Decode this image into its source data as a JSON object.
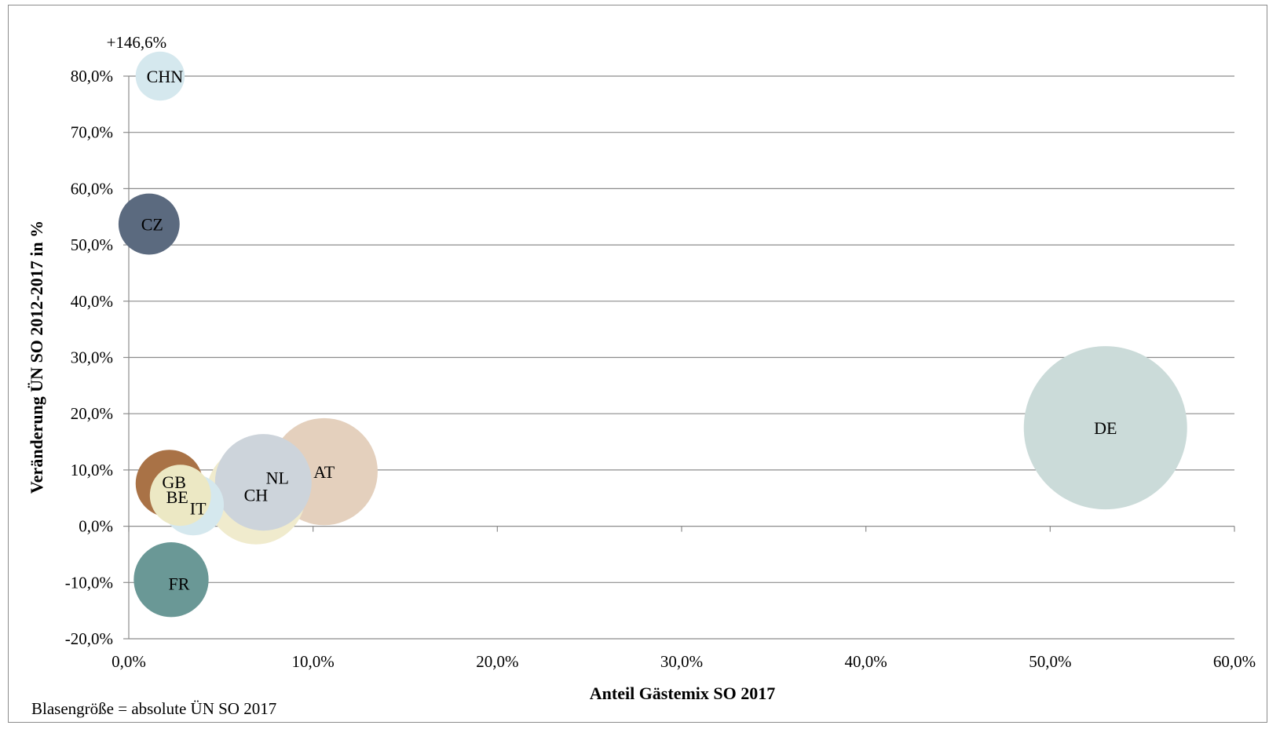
{
  "chart_data": {
    "type": "bubble",
    "xlabel": "Anteil Gästemix SO 2017",
    "ylabel": "Veränderung ÜN SO 2012-2017 in %",
    "xlim": [
      0,
      60
    ],
    "ylim": [
      -20,
      80
    ],
    "x_ticks": [
      0,
      10,
      20,
      30,
      40,
      50,
      60
    ],
    "y_ticks": [
      -20,
      -10,
      0,
      10,
      20,
      30,
      40,
      50,
      60,
      70,
      80
    ],
    "x_tick_labels": [
      "0,0%",
      "10,0%",
      "20,0%",
      "30,0%",
      "40,0%",
      "50,0%",
      "60,0%"
    ],
    "y_tick_labels": [
      "-20,0%",
      "-10,0%",
      "0,0%",
      "10,0%",
      "20,0%",
      "30,0%",
      "40,0%",
      "50,0%",
      "60,0%",
      "70,0%",
      "80,0%"
    ],
    "grid": "horizontal",
    "size_note": "Blasengröße = absolute ÜN SO 2017",
    "points": [
      {
        "label": "DE",
        "x": 53.0,
        "y": 17.5,
        "size": 100,
        "color": "#cbdbd9"
      },
      {
        "label": "AT",
        "x": 10.6,
        "y": 9.7,
        "size": 43,
        "color": "#e4d0bd"
      },
      {
        "label": "NL",
        "x": 7.3,
        "y": 7.8,
        "size": 35,
        "color": "#cdd4db"
      },
      {
        "label": "CH",
        "x": 6.9,
        "y": 5.6,
        "size": 37,
        "color": "#f0ebcd"
      },
      {
        "label": "IT",
        "x": 3.5,
        "y": 3.8,
        "size": 14,
        "color": "#d5e8ee"
      },
      {
        "label": "BE",
        "x": 2.8,
        "y": 5.5,
        "size": 14,
        "color": "#ece8c4"
      },
      {
        "label": "GB",
        "x": 2.2,
        "y": 7.6,
        "size": 17,
        "color": "#a97246"
      },
      {
        "label": "FR",
        "x": 2.3,
        "y": -9.5,
        "size": 21,
        "color": "#6a9896"
      },
      {
        "label": "CZ",
        "x": 1.1,
        "y": 53.7,
        "size": 14,
        "color": "#5b6a7f"
      },
      {
        "label": "CHN",
        "x": 1.7,
        "y": 80.0,
        "size": 9,
        "color": "#d5e8ee",
        "annotation": "+146,6%"
      }
    ]
  }
}
